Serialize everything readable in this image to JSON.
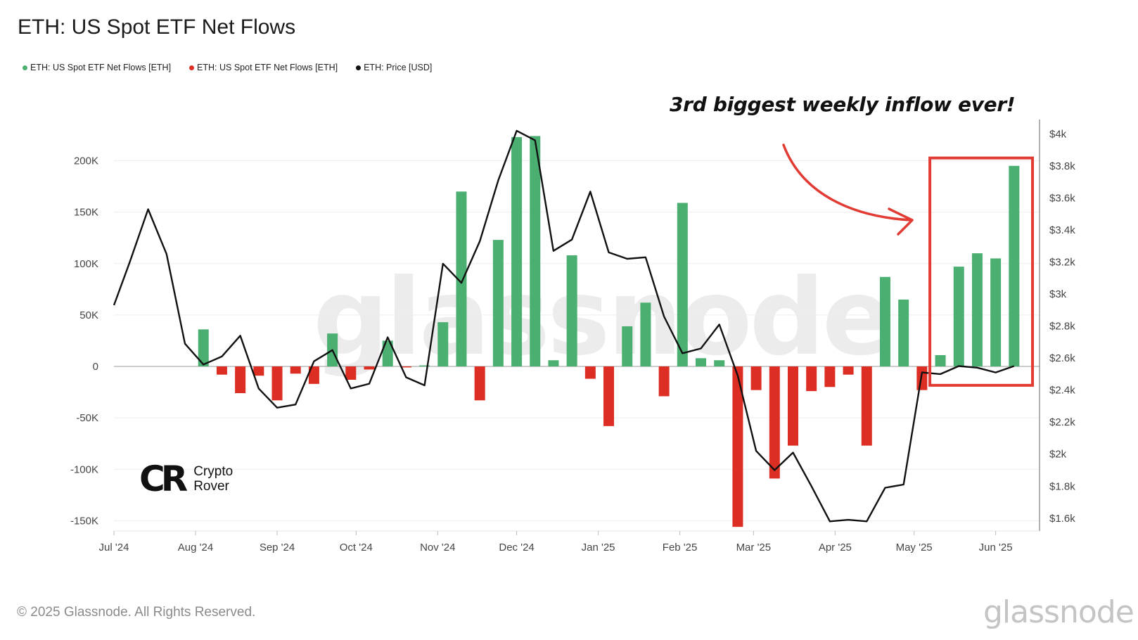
{
  "title": "ETH: US Spot ETF Net Flows",
  "legend": [
    {
      "label": "ETH: US Spot ETF Net Flows [ETH]",
      "color": "#4caf72"
    },
    {
      "label": "ETH: US Spot ETF Net Flows [ETH]",
      "color": "#dd2e24"
    },
    {
      "label": "ETH: Price [USD]",
      "color": "#111111"
    }
  ],
  "annotation": "3rd biggest weekly inflow ever!",
  "watermark": "glassnode",
  "logo": {
    "mark": "CR",
    "line1": "Crypto",
    "line2": "Rover"
  },
  "footer": {
    "copyright": "© 2025 Glassnode. All Rights Reserved.",
    "brand": "glassnode"
  },
  "colors": {
    "positive": "#4caf72",
    "negative": "#dd2e24",
    "price": "#111111",
    "highlight": "#e23b33"
  },
  "chart_data": {
    "type": "bar",
    "x_type": "date",
    "xlim": [
      "2024-07-01",
      "2025-06-19"
    ],
    "x_ticks": [
      {
        "date": "2024-07-01",
        "label": "Jul '24"
      },
      {
        "date": "2024-08-01",
        "label": "Aug '24"
      },
      {
        "date": "2024-09-01",
        "label": "Sep '24"
      },
      {
        "date": "2024-10-01",
        "label": "Oct '24"
      },
      {
        "date": "2024-11-01",
        "label": "Nov '24"
      },
      {
        "date": "2024-12-01",
        "label": "Dec '24"
      },
      {
        "date": "2025-01-01",
        "label": "Jan '25"
      },
      {
        "date": "2025-02-01",
        "label": "Feb '25"
      },
      {
        "date": "2025-03-01",
        "label": "Mar '25"
      },
      {
        "date": "2025-04-01",
        "label": "Apr '25"
      },
      {
        "date": "2025-05-01",
        "label": "May '25"
      },
      {
        "date": "2025-06-01",
        "label": "Jun '25"
      }
    ],
    "y_left": {
      "ylim": [
        -160000,
        240000
      ],
      "ticks": [
        {
          "v": 200000,
          "label": "200K"
        },
        {
          "v": 150000,
          "label": "150K"
        },
        {
          "v": 100000,
          "label": "100K"
        },
        {
          "v": 50000,
          "label": "50K"
        },
        {
          "v": 0,
          "label": "0"
        },
        {
          "v": -50000,
          "label": "-50K"
        },
        {
          "v": -100000,
          "label": "-100K"
        },
        {
          "v": -150000,
          "label": "-150K"
        }
      ]
    },
    "y_right": {
      "ylim": [
        1520,
        4090
      ],
      "ticks": [
        {
          "v": 4000,
          "label": "$4k"
        },
        {
          "v": 3800,
          "label": "$3.8k"
        },
        {
          "v": 3600,
          "label": "$3.6k"
        },
        {
          "v": 3400,
          "label": "$3.4k"
        },
        {
          "v": 3200,
          "label": "$3.2k"
        },
        {
          "v": 3000,
          "label": "$3k"
        },
        {
          "v": 2800,
          "label": "$2.8k"
        },
        {
          "v": 2600,
          "label": "$2.6k"
        },
        {
          "v": 2400,
          "label": "$2.4k"
        },
        {
          "v": 2200,
          "label": "$2.2k"
        },
        {
          "v": 2000,
          "label": "$2k"
        },
        {
          "v": 1800,
          "label": "$1.8k"
        },
        {
          "v": 1600,
          "label": "$1.6k"
        }
      ]
    },
    "grid": true,
    "series": [
      {
        "name": "ETH: US Spot ETF Net Flows [ETH]",
        "type": "bar",
        "points": [
          {
            "date": "2024-08-04",
            "value": 36000
          },
          {
            "date": "2024-08-11",
            "value": -8000
          },
          {
            "date": "2024-08-18",
            "value": -26000
          },
          {
            "date": "2024-08-25",
            "value": -9000
          },
          {
            "date": "2024-09-01",
            "value": -33000
          },
          {
            "date": "2024-09-08",
            "value": -7000
          },
          {
            "date": "2024-09-15",
            "value": -17000
          },
          {
            "date": "2024-09-22",
            "value": 32000
          },
          {
            "date": "2024-09-29",
            "value": -13000
          },
          {
            "date": "2024-10-06",
            "value": -3000
          },
          {
            "date": "2024-10-13",
            "value": 25000
          },
          {
            "date": "2024-10-20",
            "value": -1000
          },
          {
            "date": "2024-10-27",
            "value": 1000
          },
          {
            "date": "2024-11-03",
            "value": 43000
          },
          {
            "date": "2024-11-10",
            "value": 170000
          },
          {
            "date": "2024-11-17",
            "value": -33000
          },
          {
            "date": "2024-11-24",
            "value": 123000
          },
          {
            "date": "2024-12-01",
            "value": 223000
          },
          {
            "date": "2024-12-08",
            "value": 224000
          },
          {
            "date": "2024-12-15",
            "value": 6000
          },
          {
            "date": "2024-12-22",
            "value": 108000
          },
          {
            "date": "2024-12-29",
            "value": -12000
          },
          {
            "date": "2025-01-05",
            "value": -58000
          },
          {
            "date": "2025-01-12",
            "value": 39000
          },
          {
            "date": "2025-01-19",
            "value": 62000
          },
          {
            "date": "2025-01-26",
            "value": -29000
          },
          {
            "date": "2025-02-02",
            "value": 159000
          },
          {
            "date": "2025-02-09",
            "value": 8000
          },
          {
            "date": "2025-02-16",
            "value": 6000
          },
          {
            "date": "2025-02-23",
            "value": -156000
          },
          {
            "date": "2025-03-02",
            "value": -23000
          },
          {
            "date": "2025-03-09",
            "value": -109000
          },
          {
            "date": "2025-03-16",
            "value": -77000
          },
          {
            "date": "2025-03-23",
            "value": -24000
          },
          {
            "date": "2025-03-30",
            "value": -20000
          },
          {
            "date": "2025-04-06",
            "value": -8000
          },
          {
            "date": "2025-04-13",
            "value": -77000
          },
          {
            "date": "2025-04-20",
            "value": 87000
          },
          {
            "date": "2025-04-27",
            "value": 65000
          },
          {
            "date": "2025-05-04",
            "value": -23000
          },
          {
            "date": "2025-05-11",
            "value": 11000
          },
          {
            "date": "2025-05-18",
            "value": 97000
          },
          {
            "date": "2025-05-25",
            "value": 110000
          },
          {
            "date": "2025-06-01",
            "value": 105000
          },
          {
            "date": "2025-06-08",
            "value": 195000
          }
        ]
      },
      {
        "name": "ETH: Price [USD]",
        "type": "line",
        "axis": "right",
        "points": [
          {
            "date": "2024-07-01",
            "value": 2930
          },
          {
            "date": "2024-07-07",
            "value": 3200
          },
          {
            "date": "2024-07-14",
            "value": 3530
          },
          {
            "date": "2024-07-21",
            "value": 3250
          },
          {
            "date": "2024-07-28",
            "value": 2690
          },
          {
            "date": "2024-08-04",
            "value": 2560
          },
          {
            "date": "2024-08-11",
            "value": 2610
          },
          {
            "date": "2024-08-18",
            "value": 2740
          },
          {
            "date": "2024-08-25",
            "value": 2410
          },
          {
            "date": "2024-09-01",
            "value": 2290
          },
          {
            "date": "2024-09-08",
            "value": 2310
          },
          {
            "date": "2024-09-15",
            "value": 2580
          },
          {
            "date": "2024-09-22",
            "value": 2650
          },
          {
            "date": "2024-09-29",
            "value": 2410
          },
          {
            "date": "2024-10-06",
            "value": 2440
          },
          {
            "date": "2024-10-13",
            "value": 2730
          },
          {
            "date": "2024-10-20",
            "value": 2480
          },
          {
            "date": "2024-10-27",
            "value": 2430
          },
          {
            "date": "2024-11-03",
            "value": 3190
          },
          {
            "date": "2024-11-10",
            "value": 3070
          },
          {
            "date": "2024-11-17",
            "value": 3330
          },
          {
            "date": "2024-11-24",
            "value": 3710
          },
          {
            "date": "2024-12-01",
            "value": 4020
          },
          {
            "date": "2024-12-08",
            "value": 3960
          },
          {
            "date": "2024-12-15",
            "value": 3270
          },
          {
            "date": "2024-12-22",
            "value": 3340
          },
          {
            "date": "2024-12-29",
            "value": 3640
          },
          {
            "date": "2025-01-05",
            "value": 3260
          },
          {
            "date": "2025-01-12",
            "value": 3220
          },
          {
            "date": "2025-01-19",
            "value": 3230
          },
          {
            "date": "2025-01-26",
            "value": 2860
          },
          {
            "date": "2025-02-02",
            "value": 2630
          },
          {
            "date": "2025-02-09",
            "value": 2660
          },
          {
            "date": "2025-02-16",
            "value": 2810
          },
          {
            "date": "2025-02-23",
            "value": 2490
          },
          {
            "date": "2025-03-02",
            "value": 2020
          },
          {
            "date": "2025-03-09",
            "value": 1900
          },
          {
            "date": "2025-03-16",
            "value": 2010
          },
          {
            "date": "2025-03-23",
            "value": 1800
          },
          {
            "date": "2025-03-30",
            "value": 1580
          },
          {
            "date": "2025-04-06",
            "value": 1590
          },
          {
            "date": "2025-04-13",
            "value": 1580
          },
          {
            "date": "2025-04-20",
            "value": 1790
          },
          {
            "date": "2025-04-27",
            "value": 1810
          },
          {
            "date": "2025-05-04",
            "value": 2510
          },
          {
            "date": "2025-05-11",
            "value": 2500
          },
          {
            "date": "2025-05-18",
            "value": 2550
          },
          {
            "date": "2025-05-25",
            "value": 2540
          },
          {
            "date": "2025-06-01",
            "value": 2510
          },
          {
            "date": "2025-06-08",
            "value": 2550
          }
        ]
      }
    ],
    "highlight": {
      "x_from": "2025-05-07",
      "x_to": "2025-06-15",
      "y_from": 2430,
      "y_to": 3850
    }
  }
}
